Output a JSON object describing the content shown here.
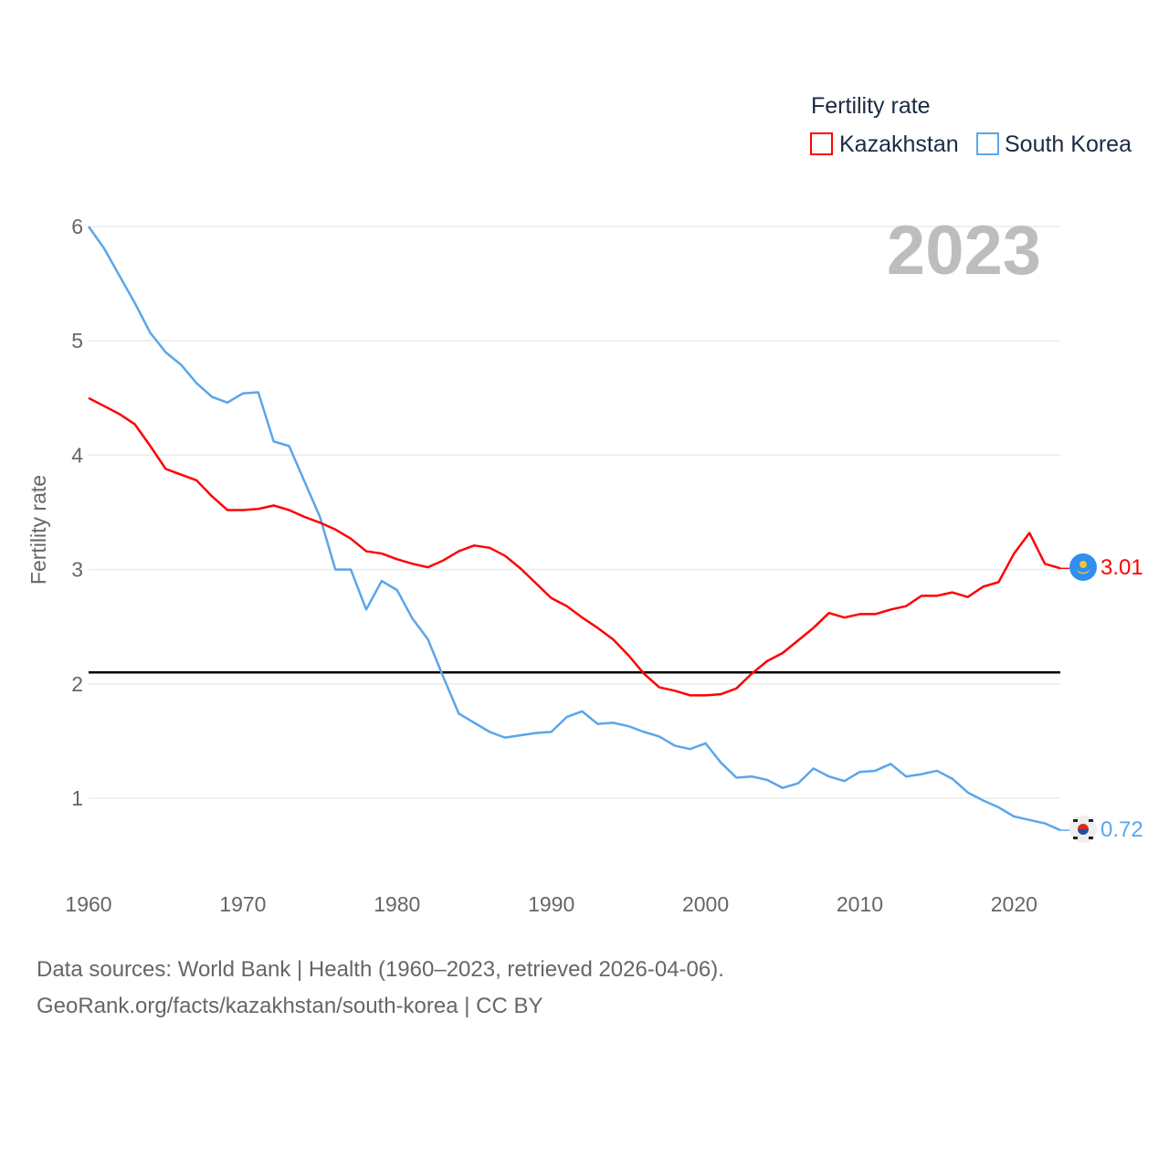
{
  "chart_data": {
    "type": "line",
    "title": "Fertility rate",
    "current_year_label": "2023",
    "xlabel": "",
    "ylabel": "Fertility rate",
    "xlim": [
      1960,
      2023
    ],
    "ylim": [
      0.5,
      6
    ],
    "x_ticks": [
      1960,
      1970,
      1980,
      1990,
      2000,
      2010,
      2020
    ],
    "y_ticks": [
      1,
      2,
      3,
      4,
      5,
      6
    ],
    "grid": true,
    "legend_position": "top-right",
    "reference_line": {
      "value": 2.1,
      "color": "#000000"
    },
    "x": [
      1960,
      1961,
      1962,
      1963,
      1964,
      1965,
      1966,
      1967,
      1968,
      1969,
      1970,
      1971,
      1972,
      1973,
      1974,
      1975,
      1976,
      1977,
      1978,
      1979,
      1980,
      1981,
      1982,
      1983,
      1984,
      1985,
      1986,
      1987,
      1988,
      1989,
      1990,
      1991,
      1992,
      1993,
      1994,
      1995,
      1996,
      1997,
      1998,
      1999,
      2000,
      2001,
      2002,
      2003,
      2004,
      2005,
      2006,
      2007,
      2008,
      2009,
      2010,
      2011,
      2012,
      2013,
      2014,
      2015,
      2016,
      2017,
      2018,
      2019,
      2020,
      2021,
      2022,
      2023
    ],
    "series": [
      {
        "name": "Kazakhstan",
        "color": "#ff0000",
        "end_label": "3.01",
        "values": [
          4.5,
          4.43,
          4.36,
          4.27,
          4.08,
          3.88,
          3.83,
          3.78,
          3.64,
          3.52,
          3.52,
          3.53,
          3.56,
          3.52,
          3.46,
          3.41,
          3.35,
          3.27,
          3.16,
          3.14,
          3.09,
          3.05,
          3.02,
          3.08,
          3.16,
          3.21,
          3.19,
          3.12,
          3.01,
          2.88,
          2.75,
          2.68,
          2.58,
          2.49,
          2.39,
          2.25,
          2.09,
          1.97,
          1.94,
          1.9,
          1.9,
          1.91,
          1.96,
          2.09,
          2.2,
          2.27,
          2.38,
          2.49,
          2.62,
          2.58,
          2.61,
          2.61,
          2.65,
          2.68,
          2.77,
          2.77,
          2.8,
          2.76,
          2.85,
          2.89,
          3.14,
          3.32,
          3.05,
          3.01
        ]
      },
      {
        "name": "South Korea",
        "color": "#5aa6ea",
        "end_label": "0.72",
        "values": [
          6.0,
          5.81,
          5.57,
          5.33,
          5.07,
          4.9,
          4.79,
          4.63,
          4.51,
          4.46,
          4.54,
          4.55,
          4.12,
          4.08,
          3.77,
          3.46,
          3.0,
          3.0,
          2.65,
          2.9,
          2.82,
          2.57,
          2.39,
          2.06,
          1.74,
          1.66,
          1.58,
          1.53,
          1.55,
          1.57,
          1.58,
          1.71,
          1.76,
          1.65,
          1.66,
          1.63,
          1.58,
          1.54,
          1.46,
          1.43,
          1.48,
          1.31,
          1.18,
          1.19,
          1.16,
          1.09,
          1.13,
          1.26,
          1.19,
          1.15,
          1.23,
          1.24,
          1.3,
          1.19,
          1.21,
          1.24,
          1.17,
          1.05,
          0.98,
          0.92,
          0.84,
          0.81,
          0.78,
          0.72
        ]
      }
    ]
  },
  "footer": {
    "line1": "Data sources: World Bank | Health (1960–2023, retrieved 2026-04-06).",
    "line2": "GeoRank.org/facts/kazakhstan/south-korea | CC BY"
  }
}
